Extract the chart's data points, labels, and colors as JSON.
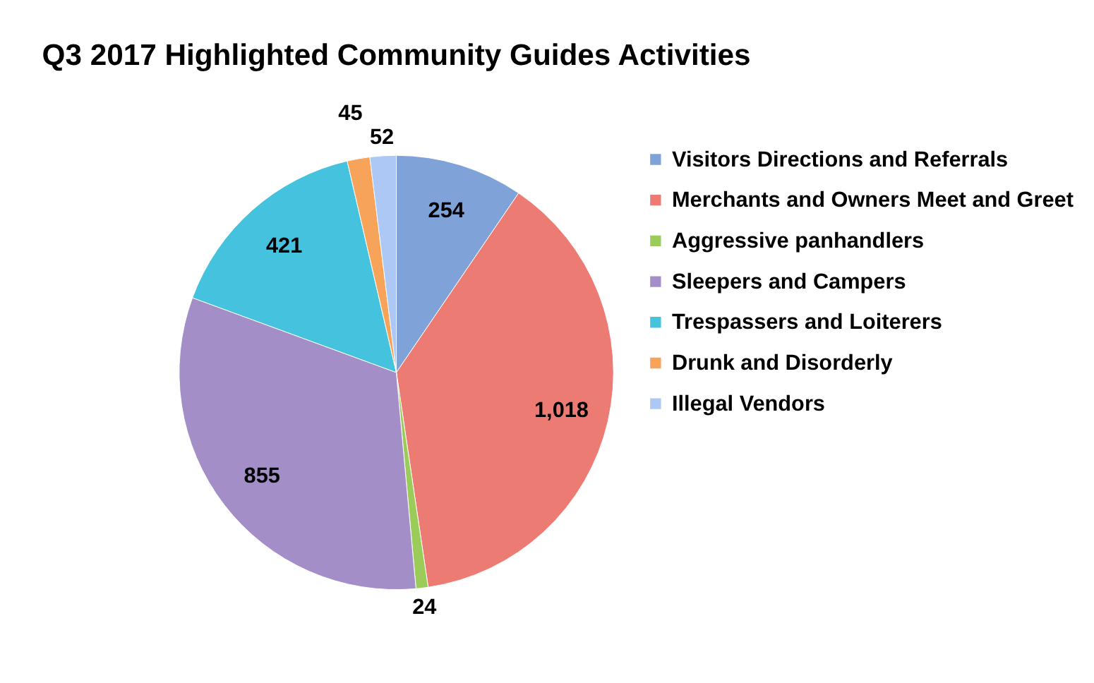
{
  "chart_data": {
    "type": "pie",
    "title": "Q3 2017 Highlighted Community Guides Activities",
    "categories": [
      "Visitors Directions and Referrals",
      "Merchants and  Owners Meet and Greet",
      "Aggressive panhandlers",
      "Sleepers and Campers",
      "Trespassers and Loiterers",
      "Drunk and Disorderly",
      "Illegal Vendors"
    ],
    "values": [
      254,
      1018,
      24,
      855,
      421,
      45,
      52
    ],
    "colors": [
      "#7fa3d9",
      "#ec7b74",
      "#9bcc5a",
      "#a48ec8",
      "#45c2de",
      "#f7a45a",
      "#adc8f4"
    ],
    "value_labels": [
      "254",
      "1,018",
      "24",
      "855",
      "421",
      "45",
      "52"
    ],
    "legend": "right"
  }
}
